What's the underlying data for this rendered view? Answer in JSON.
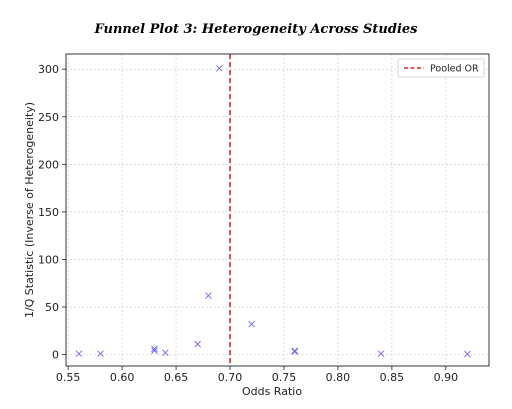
{
  "chart_data": {
    "type": "scatter",
    "title": "Funnel Plot 3: Heterogeneity Across Studies",
    "xlabel": "Odds Ratio",
    "ylabel": "1/Q Statistic (Inverse of Heterogeneity)",
    "xlim": [
      0.548,
      0.94
    ],
    "ylim": [
      -12,
      316
    ],
    "xticks": [
      0.55,
      0.6,
      0.65,
      0.7,
      0.75,
      0.8,
      0.85,
      0.9
    ],
    "xtick_labels": [
      "0.55",
      "0.60",
      "0.65",
      "0.70",
      "0.75",
      "0.80",
      "0.85",
      "0.90"
    ],
    "yticks": [
      0,
      50,
      100,
      150,
      200,
      250,
      300
    ],
    "ytick_labels": [
      "0",
      "50",
      "100",
      "150",
      "200",
      "250",
      "300"
    ],
    "grid": true,
    "legend_position": "top-right",
    "marker_color": "#6b6bf2",
    "reference_line_color": "#d62728",
    "points": [
      {
        "x": 0.56,
        "y": 1
      },
      {
        "x": 0.58,
        "y": 1
      },
      {
        "x": 0.63,
        "y": 4
      },
      {
        "x": 0.63,
        "y": 6
      },
      {
        "x": 0.64,
        "y": 2
      },
      {
        "x": 0.67,
        "y": 11
      },
      {
        "x": 0.68,
        "y": 62
      },
      {
        "x": 0.69,
        "y": 301
      },
      {
        "x": 0.72,
        "y": 32
      },
      {
        "x": 0.76,
        "y": 4
      },
      {
        "x": 0.76,
        "y": 3
      },
      {
        "x": 0.84,
        "y": 1
      },
      {
        "x": 0.92,
        "y": 0.5
      }
    ],
    "pooled_or": 0.7,
    "legend": [
      {
        "label": "Pooled OR",
        "style": "dashed",
        "color": "#d62728"
      }
    ]
  }
}
